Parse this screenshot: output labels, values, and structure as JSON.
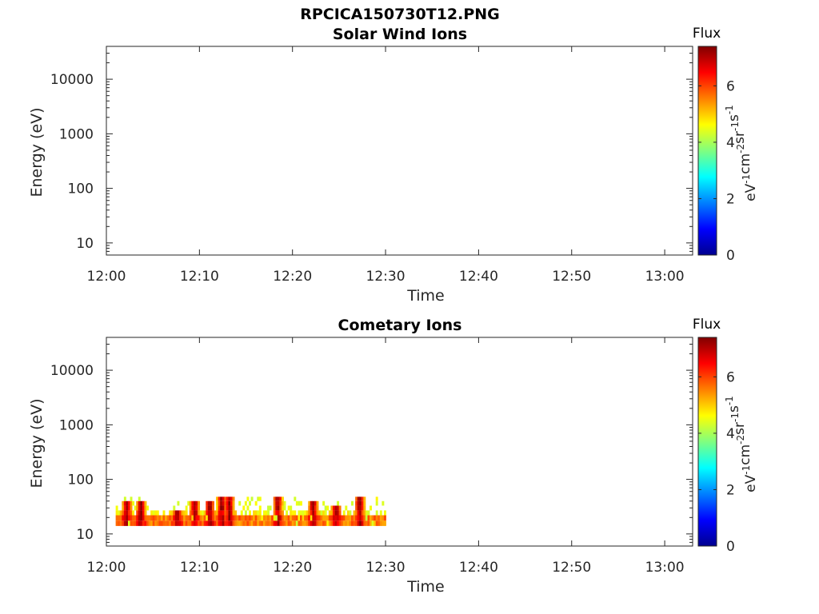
{
  "figure": {
    "title": "RPCICA150730T12.PNG"
  },
  "chart_data": [
    {
      "type": "heatmap",
      "title": "Solar Wind Ions",
      "xlabel": "Time",
      "ylabel": "Energy (eV)",
      "x_tick_labels": [
        "12:00",
        "12:10",
        "12:20",
        "12:30",
        "12:40",
        "12:50",
        "13:00"
      ],
      "y_tick_labels": [
        "10",
        "100",
        "1000",
        "10000"
      ],
      "y_scale": "log",
      "ylim": [
        6,
        40000
      ],
      "xlim_minutes": [
        0,
        63
      ],
      "colorbar": {
        "title": "Flux",
        "unit_label": "eV-1cm-2sr-1s-1",
        "ticks": [
          "0",
          "2",
          "4",
          "6"
        ],
        "range": [
          0,
          7.4
        ],
        "colormap": "jet"
      },
      "data": []
    },
    {
      "type": "heatmap",
      "title": "Cometary Ions",
      "xlabel": "Time",
      "ylabel": "Energy (eV)",
      "x_tick_labels": [
        "12:00",
        "12:10",
        "12:20",
        "12:30",
        "12:40",
        "12:50",
        "13:00"
      ],
      "y_tick_labels": [
        "10",
        "100",
        "1000",
        "10000"
      ],
      "y_scale": "log",
      "ylim": [
        6,
        40000
      ],
      "xlim_minutes": [
        0,
        63
      ],
      "colorbar": {
        "title": "Flux",
        "unit_label": "eV-1cm-2sr-1s-1",
        "ticks": [
          "0",
          "2",
          "4",
          "6"
        ],
        "range": [
          0,
          7.4
        ],
        "colormap": "jet"
      },
      "data_extent_minutes": [
        1,
        30
      ],
      "energy_band_ev": [
        14,
        45
      ],
      "bursts": [
        {
          "t": 2.1,
          "peak_ev": 40,
          "flux": 7.2
        },
        {
          "t": 3.6,
          "peak_ev": 40,
          "flux": 6.8
        },
        {
          "t": 7.5,
          "peak_ev": 25,
          "flux": 6.5
        },
        {
          "t": 9.4,
          "peak_ev": 35,
          "flux": 6.3
        },
        {
          "t": 11.0,
          "peak_ev": 40,
          "flux": 7.0
        },
        {
          "t": 12.3,
          "peak_ev": 48,
          "flux": 7.3
        },
        {
          "t": 13.1,
          "peak_ev": 48,
          "flux": 7.2
        },
        {
          "t": 18.3,
          "peak_ev": 48,
          "flux": 7.2
        },
        {
          "t": 22.1,
          "peak_ev": 35,
          "flux": 7.1
        },
        {
          "t": 24.6,
          "peak_ev": 30,
          "flux": 7.0
        },
        {
          "t": 27.1,
          "peak_ev": 48,
          "flux": 7.2
        }
      ]
    }
  ]
}
